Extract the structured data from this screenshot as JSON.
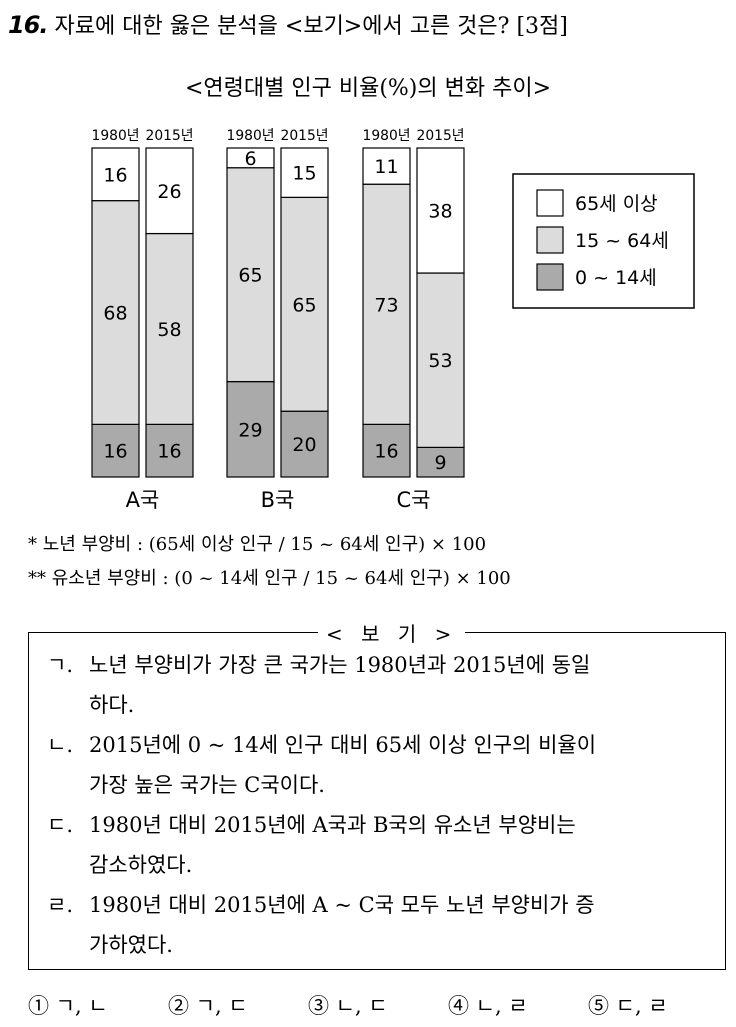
{
  "question": {
    "number": "16.",
    "text": "자료에 대한 옳은 분석을 <보기>에서 고른 것은? [3점]"
  },
  "chart_data": {
    "type": "bar",
    "title": "<연령대별 인구 비율(%)의 변화 추이>",
    "groups": [
      {
        "country": "A국",
        "bars": [
          {
            "year": "1980년",
            "values": [
              16,
              68,
              16
            ]
          },
          {
            "year": "2015년",
            "values": [
              16,
              58,
              26
            ]
          }
        ]
      },
      {
        "country": "B국",
        "bars": [
          {
            "year": "1980년",
            "values": [
              29,
              65,
              6
            ]
          },
          {
            "year": "2015년",
            "values": [
              20,
              65,
              15
            ]
          }
        ]
      },
      {
        "country": "C국",
        "bars": [
          {
            "year": "1980년",
            "values": [
              16,
              73,
              11
            ]
          },
          {
            "year": "2015년",
            "values": [
              9,
              53,
              38
            ]
          }
        ]
      }
    ],
    "series": [
      {
        "name": "0 ~ 14세",
        "color": "#aaaaaa"
      },
      {
        "name": "15 ~ 64세",
        "color": "#dcdcdc"
      },
      {
        "name": "65세 이상",
        "color": "#ffffff"
      }
    ],
    "legend_order": [
      "65세 이상",
      "15 ~ 64세",
      "0 ~ 14세"
    ],
    "ylim": [
      0,
      100
    ],
    "legend_position": "right"
  },
  "notes": [
    "* 노년 부양비 : (65세 이상 인구 / 15 ~ 64세 인구) × 100",
    "** 유소년 부양비 : (0 ~ 14세 인구 / 15 ~ 64세 인구) × 100"
  ],
  "box": {
    "title": "< 보 기 >",
    "statements": [
      {
        "label": "ㄱ.",
        "line1": "노년 부양비가 가장 큰 국가는 1980년과 2015년에 동일",
        "line2": "하다."
      },
      {
        "label": "ㄴ.",
        "line1": "2015년에 0 ~ 14세 인구 대비 65세 이상 인구의 비율이",
        "line2": "가장 높은 국가는 C국이다."
      },
      {
        "label": "ㄷ.",
        "line1": "1980년 대비 2015년에 A국과 B국의 유소년 부양비는",
        "line2": "감소하였다."
      },
      {
        "label": "ㄹ.",
        "line1": "1980년 대비 2015년에 A ~ C국 모두 노년 부양비가 증",
        "line2": "가하였다."
      }
    ]
  },
  "choices": [
    "① ㄱ, ㄴ",
    "② ㄱ, ㄷ",
    "③ ㄴ, ㄷ",
    "④ ㄴ, ㄹ",
    "⑤ ㄷ, ㄹ"
  ]
}
